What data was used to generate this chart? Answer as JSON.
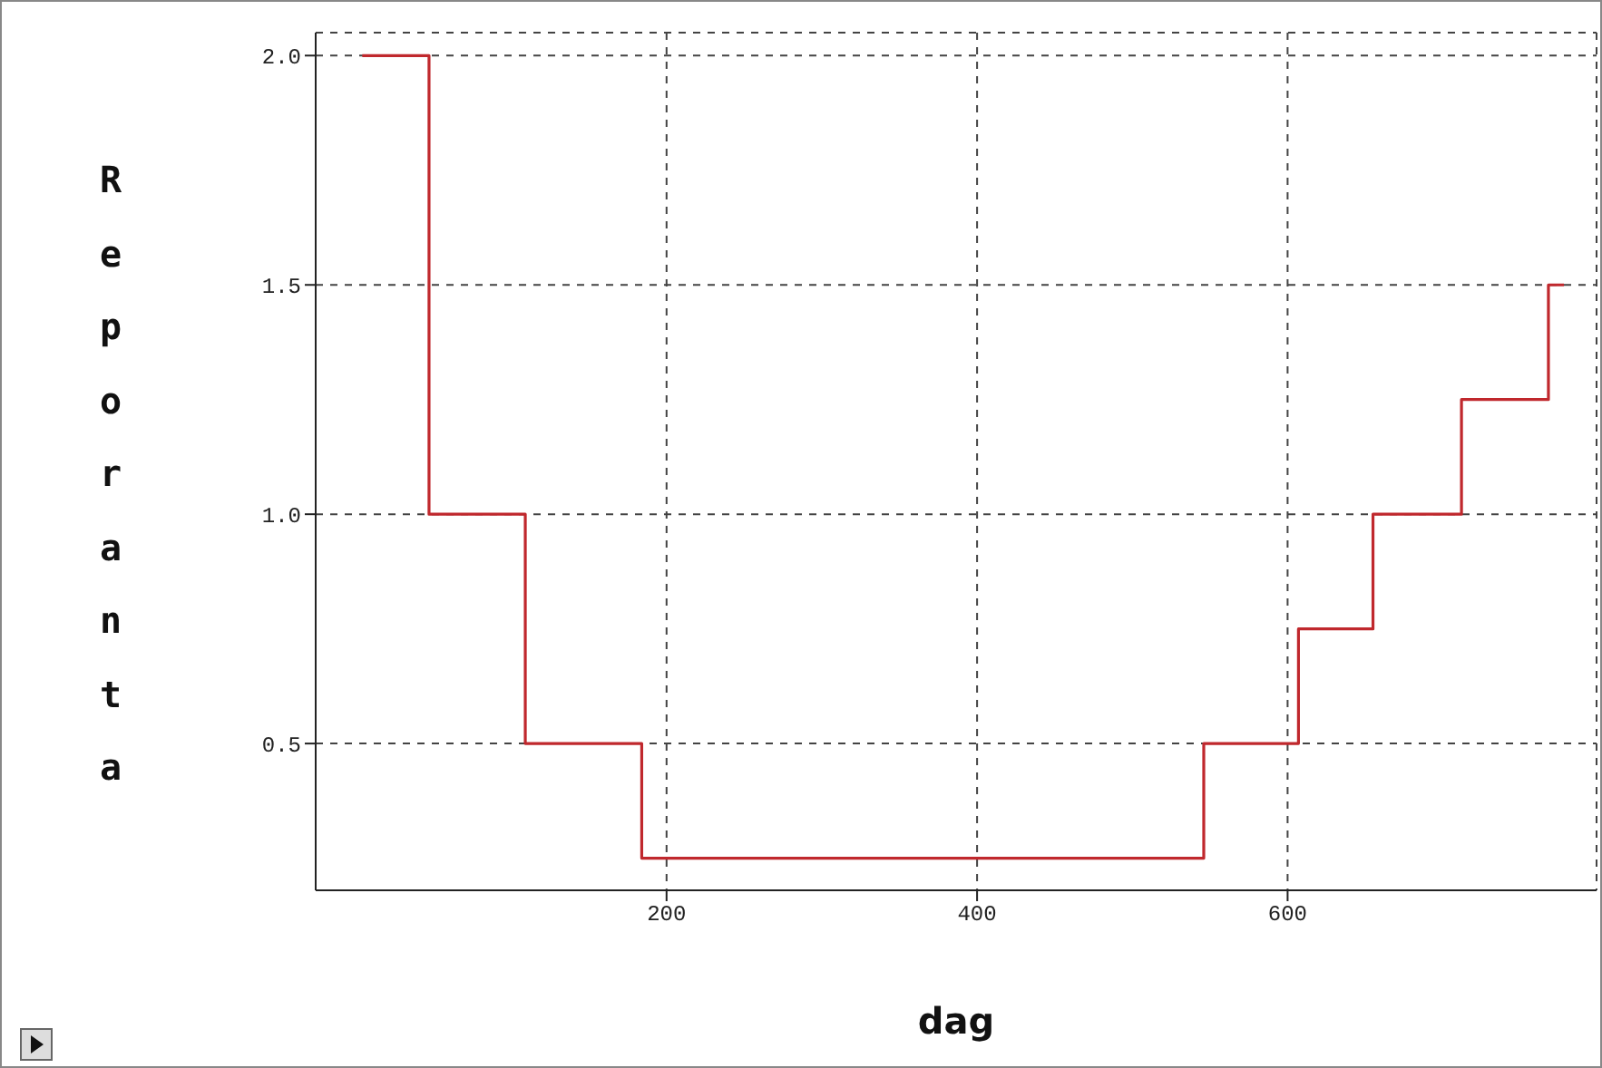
{
  "chart_data": {
    "type": "step",
    "xlabel": "dag",
    "ylabel": "Reporanta",
    "x": [
      4,
      47,
      109,
      184,
      546,
      607,
      655,
      712,
      768,
      778
    ],
    "series": [
      {
        "color": "#c0282d",
        "values": [
          2,
          1,
          0.5,
          0.25,
          0.5,
          0.75,
          1,
          1.25,
          1.5,
          1.5
        ]
      }
    ],
    "xlim": [
      -26,
      799
    ],
    "xticks": [
      200,
      400,
      600
    ],
    "ylim": [
      0.18,
      2.05
    ],
    "yticks": [
      {
        "value": 0.5,
        "label": "0.5"
      },
      {
        "value": 1,
        "label": "1.0"
      },
      {
        "value": 1.5,
        "label": "1.5"
      },
      {
        "value": 2,
        "label": "2.0"
      }
    ],
    "grid": true,
    "line_style": "solid",
    "marker": "none"
  }
}
